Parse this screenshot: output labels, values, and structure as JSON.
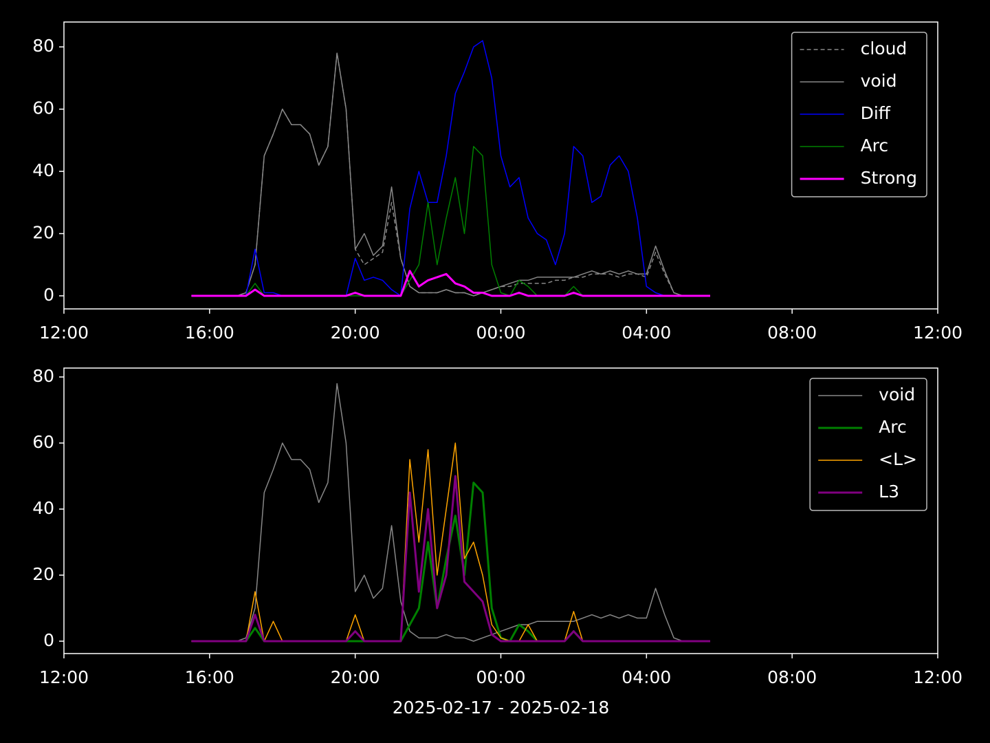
{
  "chart_data": [
    {
      "type": "line",
      "legend": "upper right",
      "x": [
        3.5,
        3.75,
        4,
        4.25,
        4.5,
        4.75,
        5,
        5.25,
        5.5,
        5.75,
        6,
        6.25,
        6.5,
        6.75,
        7,
        7.25,
        7.5,
        7.75,
        8,
        8.25,
        8.5,
        8.75,
        9,
        9.25,
        9.5,
        9.75,
        10,
        10.25,
        10.5,
        10.75,
        11,
        11.25,
        11.5,
        11.75,
        12,
        12.25,
        12.5,
        12.75,
        13,
        13.25,
        13.5,
        13.75,
        14,
        14.25,
        14.5,
        14.75,
        15,
        15.25,
        15.5,
        15.75,
        16,
        16.25,
        16.5,
        16.75,
        17,
        17.25,
        17.5,
        17.75
      ],
      "xlim": [
        0,
        24
      ],
      "xticks": [
        {
          "value": 0,
          "label": "12:00"
        },
        {
          "value": 4,
          "label": "16:00"
        },
        {
          "value": 8,
          "label": "20:00"
        },
        {
          "value": 12,
          "label": "00:00"
        },
        {
          "value": 16,
          "label": "04:00"
        },
        {
          "value": 20,
          "label": "08:00"
        },
        {
          "value": 24,
          "label": "12:00"
        }
      ],
      "ylim": [
        -4.2,
        88
      ],
      "yticks": [
        0,
        20,
        40,
        60,
        80
      ],
      "series": [
        {
          "name": "cloud",
          "color": "#888888",
          "linewidth": 1.5,
          "linestyle": "dashed",
          "values": [
            0,
            0,
            0,
            0,
            0,
            0,
            1,
            10,
            45,
            52,
            60,
            55,
            55,
            52,
            42,
            48,
            78,
            60,
            15,
            10,
            12,
            14,
            30,
            12,
            3,
            1,
            1,
            1,
            2,
            1,
            1,
            0,
            1,
            2,
            3,
            3,
            4,
            4,
            4,
            4,
            5,
            5,
            6,
            6,
            7,
            7,
            7,
            6,
            7,
            7,
            6,
            14,
            7,
            1,
            0,
            0,
            0,
            0
          ]
        },
        {
          "name": "void",
          "color": "#888888",
          "linewidth": 1.5,
          "values": [
            0,
            0,
            0,
            0,
            0,
            0,
            1,
            10,
            45,
            52,
            60,
            55,
            55,
            52,
            42,
            48,
            78,
            60,
            15,
            20,
            13,
            16,
            35,
            12,
            3,
            1,
            1,
            1,
            2,
            1,
            1,
            0,
            1,
            2,
            3,
            4,
            5,
            5,
            6,
            6,
            6,
            6,
            6,
            7,
            8,
            7,
            8,
            7,
            8,
            7,
            7,
            16,
            8,
            1,
            0,
            0,
            0,
            0
          ]
        },
        {
          "name": "Diff",
          "color": "#0000ff",
          "linewidth": 1.5,
          "values": [
            0,
            0,
            0,
            0,
            0,
            0,
            0,
            15,
            1,
            1,
            0,
            0,
            0,
            0,
            0,
            0,
            0,
            0,
            12,
            5,
            6,
            5,
            2,
            0,
            28,
            40,
            30,
            30,
            45,
            65,
            72,
            80,
            82,
            70,
            45,
            35,
            38,
            25,
            20,
            18,
            10,
            20,
            48,
            45,
            30,
            32,
            42,
            45,
            40,
            25,
            3,
            1,
            0,
            0,
            0,
            0,
            0,
            0
          ]
        },
        {
          "name": "Arc",
          "color": "#008000",
          "linewidth": 1.5,
          "values": [
            0,
            0,
            0,
            0,
            0,
            0,
            0,
            4,
            0,
            0,
            0,
            0,
            0,
            0,
            0,
            0,
            0,
            0,
            0,
            0,
            0,
            0,
            0,
            0,
            5,
            10,
            30,
            10,
            25,
            38,
            20,
            48,
            45,
            10,
            1,
            0,
            5,
            3,
            0,
            0,
            0,
            0,
            3,
            0,
            0,
            0,
            0,
            0,
            0,
            0,
            0,
            0,
            0,
            0,
            0,
            0,
            0,
            0
          ]
        },
        {
          "name": "Strong",
          "color": "#ff00ff",
          "linewidth": 3,
          "values": [
            0,
            0,
            0,
            0,
            0,
            0,
            0,
            2,
            0,
            0,
            0,
            0,
            0,
            0,
            0,
            0,
            0,
            0,
            1,
            0,
            0,
            0,
            0,
            0,
            8,
            3,
            5,
            6,
            7,
            4,
            3,
            1,
            1,
            0,
            0,
            0,
            1,
            0,
            0,
            0,
            0,
            0,
            1,
            0,
            0,
            0,
            0,
            0,
            0,
            0,
            0,
            0,
            0,
            0,
            0,
            0,
            0,
            0
          ]
        }
      ]
    },
    {
      "type": "line",
      "legend": "upper right",
      "xlabel": "2025-02-17 - 2025-02-18",
      "x": [
        3.5,
        3.75,
        4,
        4.25,
        4.5,
        4.75,
        5,
        5.25,
        5.5,
        5.75,
        6,
        6.25,
        6.5,
        6.75,
        7,
        7.25,
        7.5,
        7.75,
        8,
        8.25,
        8.5,
        8.75,
        9,
        9.25,
        9.5,
        9.75,
        10,
        10.25,
        10.5,
        10.75,
        11,
        11.25,
        11.5,
        11.75,
        12,
        12.25,
        12.5,
        12.75,
        13,
        13.25,
        13.5,
        13.75,
        14,
        14.25,
        14.5,
        14.75,
        15,
        15.25,
        15.5,
        15.75,
        16,
        16.25,
        16.5,
        16.75,
        17,
        17.25,
        17.5,
        17.75
      ],
      "xlim": [
        0,
        24
      ],
      "xticks": [
        {
          "value": 0,
          "label": "12:00"
        },
        {
          "value": 4,
          "label": "16:00"
        },
        {
          "value": 8,
          "label": "20:00"
        },
        {
          "value": 12,
          "label": "00:00"
        },
        {
          "value": 16,
          "label": "04:00"
        },
        {
          "value": 20,
          "label": "08:00"
        },
        {
          "value": 24,
          "label": "12:00"
        }
      ],
      "ylim": [
        -3.75,
        82.7
      ],
      "yticks": [
        0,
        20,
        40,
        60,
        80
      ],
      "series": [
        {
          "name": "void",
          "color": "#888888",
          "linewidth": 1.5,
          "values": [
            0,
            0,
            0,
            0,
            0,
            0,
            1,
            10,
            45,
            52,
            60,
            55,
            55,
            52,
            42,
            48,
            78,
            60,
            15,
            20,
            13,
            16,
            35,
            12,
            3,
            1,
            1,
            1,
            2,
            1,
            1,
            0,
            1,
            2,
            3,
            4,
            5,
            5,
            6,
            6,
            6,
            6,
            6,
            7,
            8,
            7,
            8,
            7,
            8,
            7,
            7,
            16,
            8,
            1,
            0,
            0,
            0,
            0
          ]
        },
        {
          "name": "Arc",
          "color": "#008000",
          "linewidth": 3,
          "values": [
            0,
            0,
            0,
            0,
            0,
            0,
            0,
            4,
            0,
            0,
            0,
            0,
            0,
            0,
            0,
            0,
            0,
            0,
            0,
            0,
            0,
            0,
            0,
            0,
            5,
            10,
            30,
            10,
            25,
            38,
            20,
            48,
            45,
            10,
            1,
            0,
            5,
            3,
            0,
            0,
            0,
            0,
            3,
            0,
            0,
            0,
            0,
            0,
            0,
            0,
            0,
            0,
            0,
            0,
            0,
            0,
            0,
            0
          ]
        },
        {
          "name": "<L>",
          "color": "#ffa500",
          "linewidth": 1.5,
          "values": [
            0,
            0,
            0,
            0,
            0,
            0,
            0,
            15,
            0,
            6,
            0,
            0,
            0,
            0,
            0,
            0,
            0,
            0,
            8,
            0,
            0,
            0,
            0,
            0,
            55,
            30,
            58,
            20,
            40,
            60,
            25,
            30,
            20,
            5,
            1,
            0,
            0,
            5,
            0,
            0,
            0,
            0,
            9,
            0,
            0,
            0,
            0,
            0,
            0,
            0,
            0,
            0,
            0,
            0,
            0,
            0,
            0,
            0
          ]
        },
        {
          "name": "L3",
          "color": "#800080",
          "linewidth": 3,
          "values": [
            0,
            0,
            0,
            0,
            0,
            0,
            0,
            8,
            0,
            0,
            0,
            0,
            0,
            0,
            0,
            0,
            0,
            0,
            3,
            0,
            0,
            0,
            0,
            0,
            45,
            15,
            40,
            10,
            20,
            50,
            18,
            15,
            12,
            2,
            0,
            0,
            0,
            0,
            0,
            0,
            0,
            0,
            3,
            0,
            0,
            0,
            0,
            0,
            0,
            0,
            0,
            0,
            0,
            0,
            0,
            0,
            0,
            0
          ]
        }
      ]
    }
  ]
}
